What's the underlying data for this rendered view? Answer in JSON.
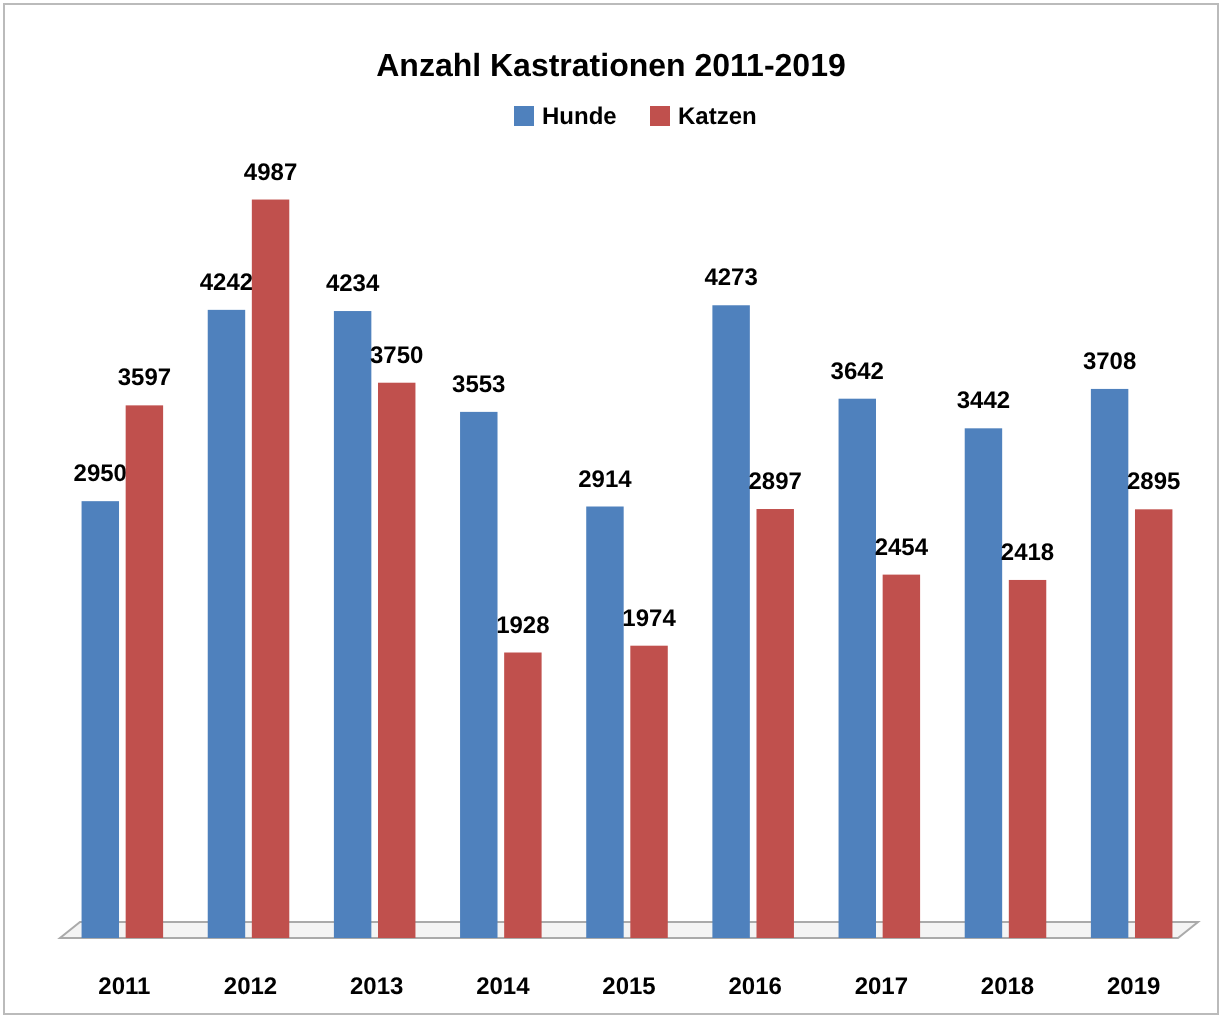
{
  "chart_data": {
    "type": "bar",
    "title": "Anzahl Kastrationen 2011-2019",
    "categories": [
      "2011",
      "2012",
      "2013",
      "2014",
      "2015",
      "2016",
      "2017",
      "2018",
      "2019"
    ],
    "series": [
      {
        "name": "Hunde",
        "color": "#4f81bd",
        "values": [
          2950,
          4242,
          4234,
          3553,
          2914,
          4273,
          3642,
          3442,
          3708
        ]
      },
      {
        "name": "Katzen",
        "color": "#c0504d",
        "values": [
          3597,
          4987,
          3750,
          1928,
          1974,
          2897,
          2454,
          2418,
          2895
        ]
      }
    ],
    "data_labels": true,
    "legend": "top",
    "grid": false
  }
}
